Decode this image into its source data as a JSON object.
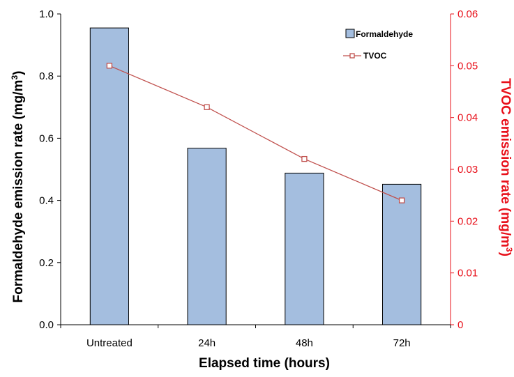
{
  "chart_data": {
    "type": "bar+line",
    "categories": [
      "Untreated",
      "24h",
      "48h",
      "72h"
    ],
    "series": [
      {
        "name": "Formaldehyde",
        "type": "bar",
        "axis": "left",
        "values": [
          0.955,
          0.568,
          0.488,
          0.452
        ],
        "color": "#a4bedf",
        "edge_color": "#000000"
      },
      {
        "name": "TVOC",
        "type": "line",
        "axis": "right",
        "marker": "open-square",
        "values": [
          0.05,
          0.042,
          0.032,
          0.024
        ],
        "color": "#c0504d"
      }
    ],
    "xlabel": "Elapsed time (hours)",
    "ylabel_left": {
      "text": "Formaldehyde emission rate (mg/m",
      "sup": "3",
      "suffix": ")"
    },
    "ylabel_right": {
      "text": "TVOC emission rate (mg/m",
      "sup": "3",
      "suffix": ")"
    },
    "ylim_left": [
      0,
      1.0
    ],
    "yticks_left": [
      "0.0",
      "0.2",
      "0.4",
      "0.6",
      "0.8",
      "1.0"
    ],
    "ylim_right": [
      0,
      0.06
    ],
    "yticks_right": [
      "0",
      "0.01",
      "0.02",
      "0.03",
      "0.04",
      "0.05",
      "0.06"
    ],
    "right_axis_color": "#e8101a",
    "grid": false,
    "legend_position": "top-right"
  }
}
